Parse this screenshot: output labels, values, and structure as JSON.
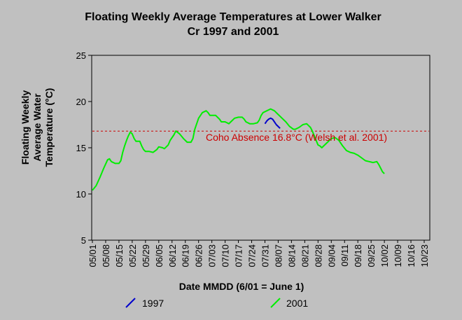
{
  "chart_data": {
    "type": "line",
    "title": "Floating Weekly Average Temperatures at Lower Walker",
    "title_line2": "Cr 1997 and 2001",
    "xlabel": "Date MMDD (6/01 = June 1)",
    "ylabel_lines": [
      "Floating Weekly",
      "Average Water",
      "Temperature (°C)"
    ],
    "ylim": [
      5,
      25
    ],
    "yticks": [
      "5",
      "10",
      "15",
      "20",
      "25"
    ],
    "x_categories": [
      "05/01",
      "05/08",
      "05/15",
      "05/22",
      "05/29",
      "06/05",
      "06/12",
      "06/19",
      "06/26",
      "07/03",
      "07/10",
      "07/17",
      "07/24",
      "07/31",
      "08/07",
      "08/14",
      "08/21",
      "08/28",
      "09/04",
      "09/11",
      "09/18",
      "09/25",
      "10/02",
      "10/09",
      "10/16",
      "10/23"
    ],
    "grid": false,
    "legend_placement": "bottom",
    "threshold": {
      "value": 16.8,
      "label": "Coho Absence 16.8°C (Welsh et al. 2001)",
      "color": "#cc0000"
    },
    "series": [
      {
        "name": "1997",
        "color": "#0000cc",
        "points": [
          [
            91,
            17.6
          ],
          [
            92,
            17.9
          ],
          [
            93,
            18.1
          ],
          [
            94,
            18.2
          ],
          [
            95,
            18.1
          ],
          [
            96,
            17.8
          ],
          [
            97,
            17.5
          ],
          [
            98,
            17.3
          ],
          [
            99,
            17.1
          ]
        ]
      },
      {
        "name": "2001",
        "color": "#00ee00",
        "points": [
          [
            0,
            10.4
          ],
          [
            2,
            10.9
          ],
          [
            4,
            11.8
          ],
          [
            6,
            12.8
          ],
          [
            8,
            13.7
          ],
          [
            9,
            13.8
          ],
          [
            10,
            13.5
          ],
          [
            12,
            13.3
          ],
          [
            14,
            13.3
          ],
          [
            15,
            13.6
          ],
          [
            16,
            14.5
          ],
          [
            17,
            15.2
          ],
          [
            18,
            15.8
          ],
          [
            19,
            16.3
          ],
          [
            20,
            16.7
          ],
          [
            21,
            16.5
          ],
          [
            22,
            16.0
          ],
          [
            23,
            15.7
          ],
          [
            25,
            15.7
          ],
          [
            26,
            15.2
          ],
          [
            27,
            14.8
          ],
          [
            28,
            14.6
          ],
          [
            30,
            14.6
          ],
          [
            32,
            14.5
          ],
          [
            34,
            14.8
          ],
          [
            35,
            15.1
          ],
          [
            37,
            15.0
          ],
          [
            38,
            14.9
          ],
          [
            40,
            15.3
          ],
          [
            41,
            15.8
          ],
          [
            43,
            16.4
          ],
          [
            44,
            16.8
          ],
          [
            46,
            16.5
          ],
          [
            48,
            16.0
          ],
          [
            50,
            15.6
          ],
          [
            52,
            15.6
          ],
          [
            53,
            16.0
          ],
          [
            54,
            17.0
          ],
          [
            55,
            17.6
          ],
          [
            56,
            18.2
          ],
          [
            58,
            18.8
          ],
          [
            60,
            19.0
          ],
          [
            61,
            18.8
          ],
          [
            62,
            18.5
          ],
          [
            65,
            18.5
          ],
          [
            67,
            18.1
          ],
          [
            68,
            17.8
          ],
          [
            70,
            17.8
          ],
          [
            72,
            17.6
          ],
          [
            73,
            17.8
          ],
          [
            75,
            18.2
          ],
          [
            77,
            18.3
          ],
          [
            79,
            18.3
          ],
          [
            80,
            18.1
          ],
          [
            81,
            17.8
          ],
          [
            83,
            17.6
          ],
          [
            85,
            17.6
          ],
          [
            87,
            17.7
          ],
          [
            88,
            18.0
          ],
          [
            89,
            18.5
          ],
          [
            90,
            18.8
          ],
          [
            92,
            19.0
          ],
          [
            94,
            19.2
          ],
          [
            96,
            19.0
          ],
          [
            98,
            18.6
          ],
          [
            100,
            18.2
          ],
          [
            102,
            17.8
          ],
          [
            104,
            17.3
          ],
          [
            106,
            17.0
          ],
          [
            107,
            17.0
          ],
          [
            109,
            17.2
          ],
          [
            111,
            17.5
          ],
          [
            113,
            17.6
          ],
          [
            115,
            17.2
          ],
          [
            116,
            16.8
          ],
          [
            117,
            16.3
          ],
          [
            118,
            15.8
          ],
          [
            119,
            15.3
          ],
          [
            120,
            15.2
          ],
          [
            121,
            15.0
          ],
          [
            122,
            15.2
          ],
          [
            124,
            15.6
          ],
          [
            126,
            16.0
          ],
          [
            128,
            16.1
          ],
          [
            130,
            15.8
          ],
          [
            132,
            15.2
          ],
          [
            134,
            14.7
          ],
          [
            136,
            14.5
          ],
          [
            138,
            14.4
          ],
          [
            140,
            14.2
          ],
          [
            142,
            13.9
          ],
          [
            144,
            13.6
          ],
          [
            146,
            13.5
          ],
          [
            148,
            13.4
          ],
          [
            150,
            13.5
          ],
          [
            151,
            13.2
          ],
          [
            152,
            12.8
          ],
          [
            153,
            12.4
          ],
          [
            154,
            12.2
          ]
        ]
      }
    ]
  }
}
